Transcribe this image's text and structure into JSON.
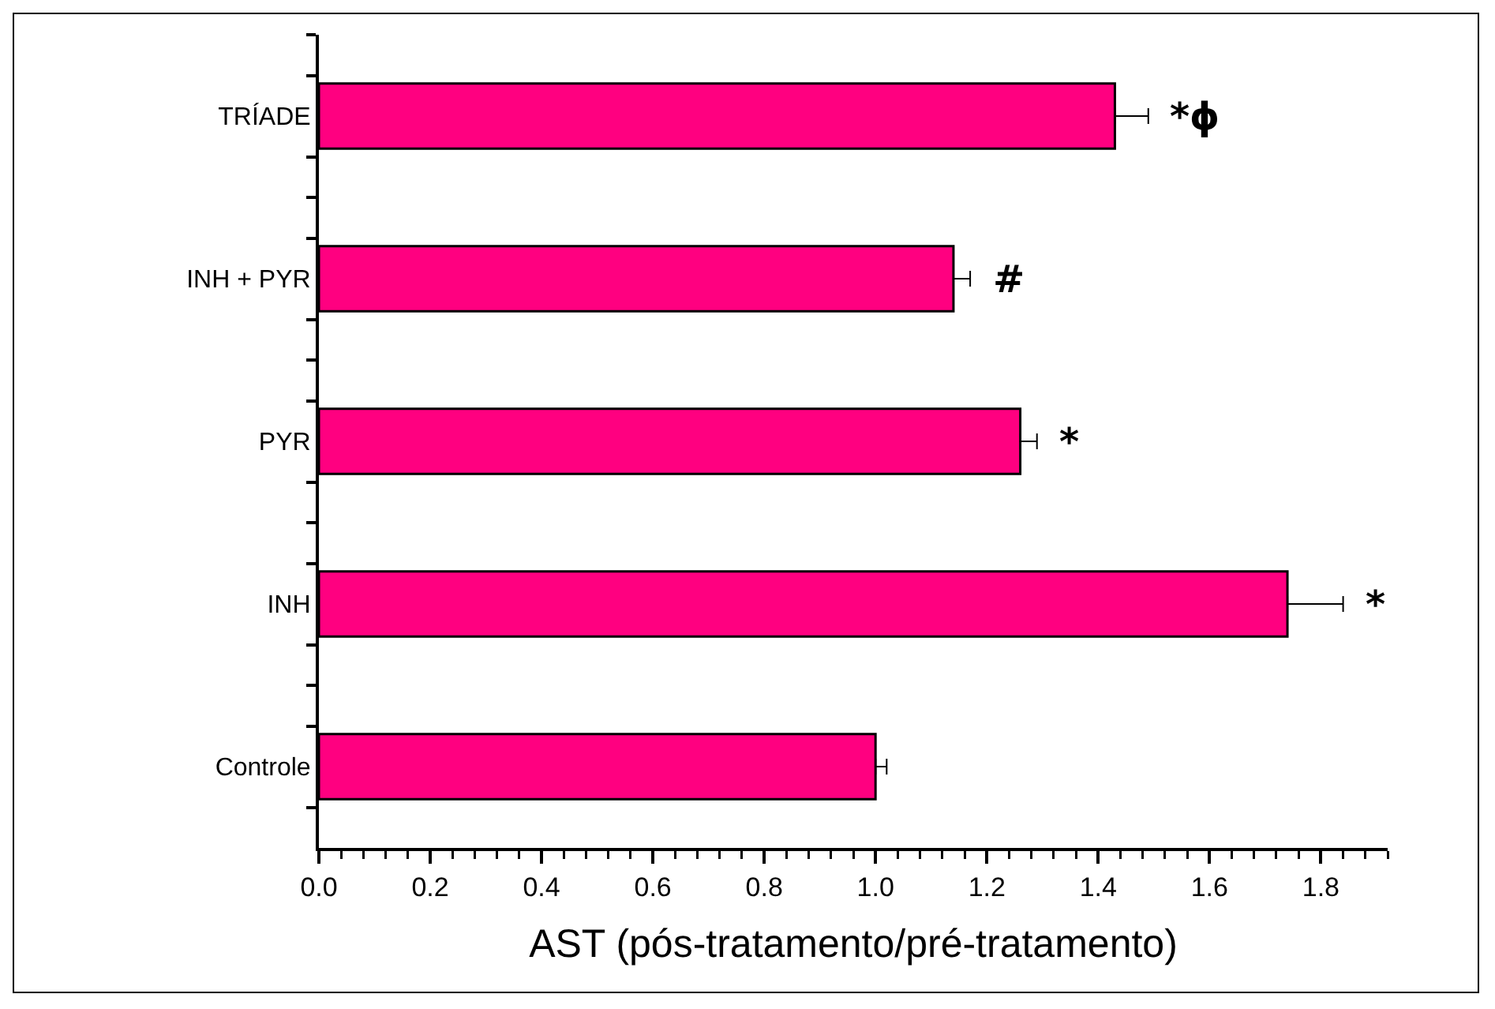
{
  "chart_data": {
    "type": "bar",
    "orientation": "horizontal",
    "xlabel": "AST (pós-tratamento/pré-tratamento)",
    "categories": [
      "TRÍADE",
      "INH + PYR",
      "PYR",
      "INH",
      "Controle"
    ],
    "values": [
      1.43,
      1.14,
      1.26,
      1.74,
      1.0
    ],
    "errors": [
      [
        1.43,
        1.49
      ],
      [
        1.14,
        1.17
      ],
      [
        1.26,
        1.29
      ],
      [
        1.74,
        1.84
      ],
      [
        1.0,
        1.02
      ]
    ],
    "color": "#ff0080",
    "xlim": [
      0,
      1.92
    ],
    "xticks": [
      {
        "value": 0,
        "label": "0.0"
      },
      0.2,
      0.4,
      0.6,
      0.8,
      {
        "value": 1,
        "label": "1.0"
      },
      1.2,
      1.4,
      1.6,
      1.8
    ],
    "annotations": [
      {
        "text": "*ϕ",
        "x": 1.49,
        "y": "TRÍADE"
      },
      {
        "text": "#",
        "x": 1.17,
        "y": "INH + PYR"
      },
      {
        "text": "*",
        "x": 1.29,
        "y": "PYR"
      },
      {
        "text": "*",
        "x": 1.84,
        "y": "INH"
      }
    ],
    "grid": false,
    "legend": false
  }
}
